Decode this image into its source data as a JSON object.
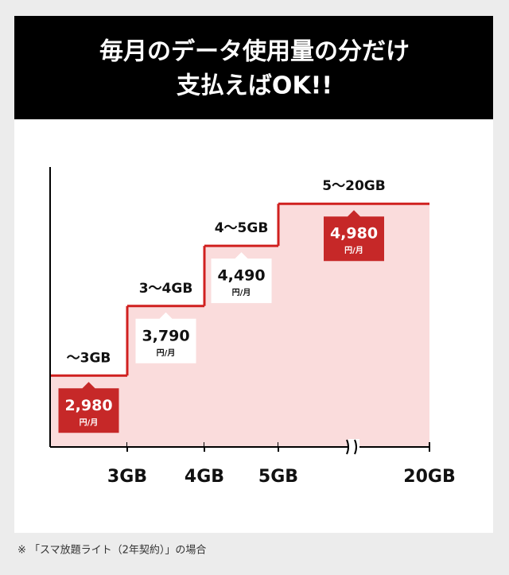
{
  "chart_data": {
    "type": "step",
    "title_lines": [
      "毎月のデータ使用量の分だけ",
      "支払えばOK!!"
    ],
    "categories": [
      "～3GB",
      "3～4GB",
      "4～5GB",
      "5～20GB"
    ],
    "boundaries": [
      "3GB",
      "4GB",
      "5GB",
      "20GB"
    ],
    "values": [
      2980,
      3790,
      4490,
      4980
    ],
    "value_labels": [
      "2,980",
      "3,790",
      "4,490",
      "4,980"
    ],
    "unit": "円/月",
    "color": "#d0201f",
    "area_color": "#fadcdc",
    "label_fills": [
      "#c62828",
      "#ffffff",
      "#ffffff",
      "#c62828"
    ],
    "ylim": [
      2150,
      5500
    ],
    "footnote": "※ 「スマ放題ライト（2年契約）」の場合"
  }
}
